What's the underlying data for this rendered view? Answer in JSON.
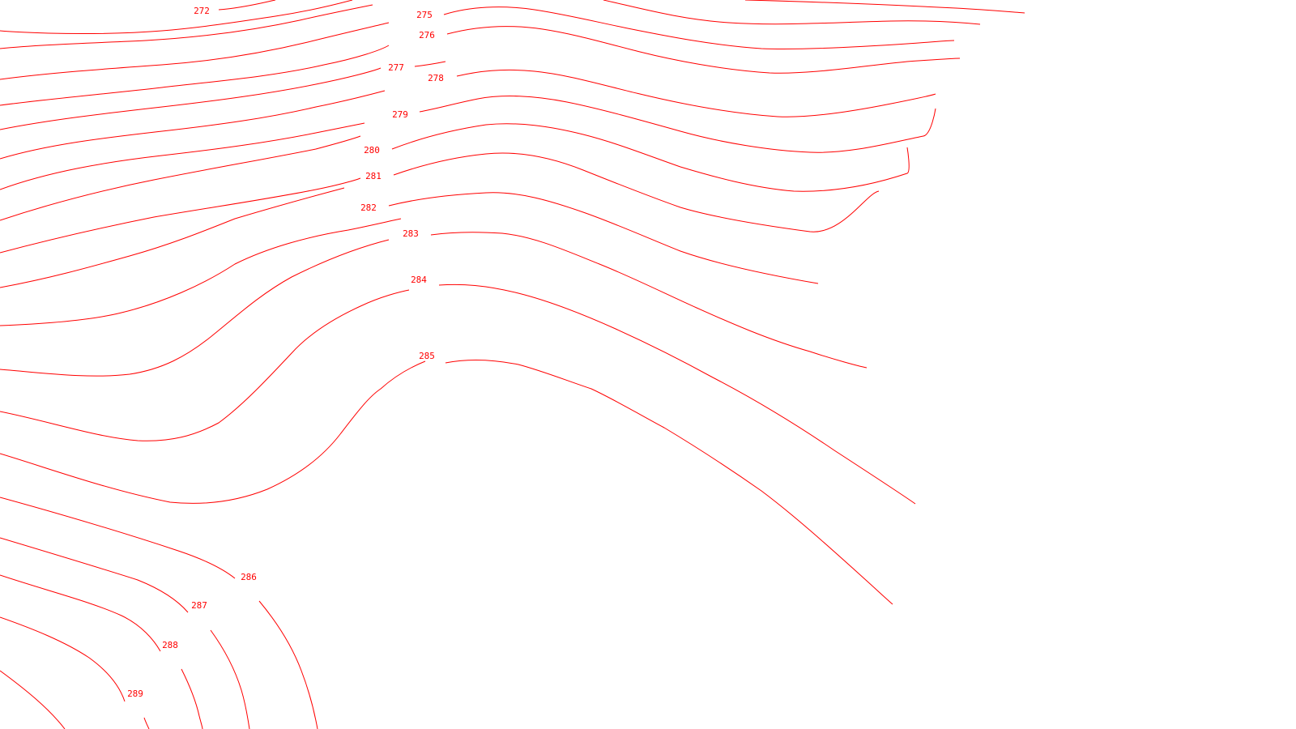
{
  "map": {
    "contour_color": "#ff0000",
    "background": "#ffffff",
    "contours": [
      {
        "label": "272"
      },
      {
        "label": "275"
      },
      {
        "label": "276"
      },
      {
        "label": "277"
      },
      {
        "label": "278"
      },
      {
        "label": "279"
      },
      {
        "label": "280"
      },
      {
        "label": "281"
      },
      {
        "label": "282"
      },
      {
        "label": "283"
      },
      {
        "label": "284"
      },
      {
        "label": "285"
      },
      {
        "label": "286"
      },
      {
        "label": "287"
      },
      {
        "label": "288"
      },
      {
        "label": "289"
      }
    ]
  }
}
